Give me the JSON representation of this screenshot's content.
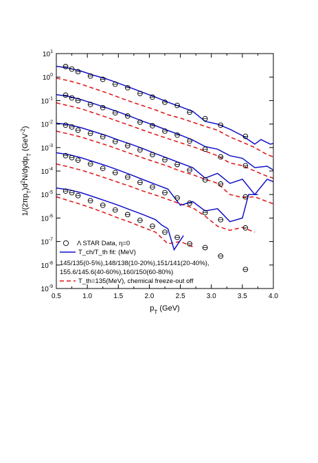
{
  "chart_data": {
    "type": "scatter",
    "title": "",
    "xlabel": "p_T (GeV)",
    "ylabel": "1/(2πp_T)d²N/dydp_T (GeV⁻²)",
    "xlim": [
      0.5,
      4.0
    ],
    "ylim_log10": [
      -9,
      1
    ],
    "y_scale": "log",
    "x_ticks": [
      "0.5",
      "1.0",
      "1.5",
      "2.0",
      "2.5",
      "3.0",
      "3.5",
      "4.0"
    ],
    "y_ticks": [
      {
        "base": "10",
        "exp": "1"
      },
      {
        "base": "10",
        "exp": "0"
      },
      {
        "base": "10",
        "exp": "-1"
      },
      {
        "base": "10",
        "exp": "-2"
      },
      {
        "base": "10",
        "exp": "-3"
      },
      {
        "base": "10",
        "exp": "-4"
      },
      {
        "base": "10",
        "exp": "-5"
      },
      {
        "base": "10",
        "exp": "-6"
      },
      {
        "base": "10",
        "exp": "-7"
      },
      {
        "base": "10",
        "exp": "-8"
      },
      {
        "base": "10",
        "exp": "-9"
      }
    ],
    "legend": {
      "placement": "bottom-left",
      "entries": [
        {
          "marker": "circle",
          "text": "Λ STAR Data, η=0"
        },
        {
          "marker": "solid-line",
          "text": "T_ch/T_th fit: (MeV)"
        },
        {
          "marker": "none",
          "text": "145/135(0-5%),148/138(10-20%),151/141(20-40%),"
        },
        {
          "marker": "none",
          "text": "155.6/145.6(40-60%),160/150(60-80%)"
        },
        {
          "marker": "dashed-line",
          "text": "T_th=135(MeV), chemical freeze-out off"
        }
      ]
    },
    "colors": {
      "data": "#000000",
      "fit": "#1010c8",
      "off": "#e01010"
    },
    "series": [
      {
        "centrality": "0-5%",
        "data_x": [
          0.65,
          0.75,
          0.85,
          1.05,
          1.25,
          1.45,
          1.65,
          1.85,
          2.05,
          2.25,
          2.45,
          2.65,
          2.9,
          3.15,
          3.55
        ],
        "data_y": [
          2.8,
          2.2,
          1.7,
          1.1,
          0.8,
          0.5,
          0.35,
          0.2,
          0.14,
          0.085,
          0.062,
          0.032,
          0.017,
          0.009,
          0.003
        ],
        "fit_x": [
          0.5,
          0.7,
          0.9,
          1.1,
          1.3,
          1.5,
          1.7,
          1.9,
          2.1,
          2.3,
          2.5,
          2.7,
          2.9,
          3.1,
          3.3,
          3.5,
          3.7,
          3.8,
          3.95,
          4.0
        ],
        "fit_y": [
          2.9,
          2.4,
          1.8,
          1.2,
          0.85,
          0.55,
          0.35,
          0.22,
          0.14,
          0.085,
          0.055,
          0.035,
          0.013,
          0.01,
          0.006,
          0.0032,
          0.0014,
          0.0022,
          0.0014,
          0.0015
        ],
        "off_x": [
          0.5,
          0.7,
          0.9,
          1.1,
          1.3,
          1.5,
          1.7,
          1.9,
          2.1,
          2.3,
          2.5,
          2.7,
          2.9,
          3.1,
          3.3,
          3.5,
          3.7,
          3.9,
          4.0
        ],
        "off_y": [
          0.9,
          0.7,
          0.5,
          0.33,
          0.22,
          0.14,
          0.09,
          0.06,
          0.04,
          0.025,
          0.018,
          0.012,
          0.008,
          0.0055,
          0.0028,
          0.0017,
          0.001,
          0.0005,
          0.0004
        ]
      },
      {
        "centrality": "10-20%",
        "data_x": [
          0.65,
          0.75,
          0.85,
          1.05,
          1.25,
          1.45,
          1.65,
          1.85,
          2.05,
          2.25,
          2.45,
          2.65,
          2.9,
          3.15,
          3.55
        ],
        "data_y": [
          0.17,
          0.13,
          0.1,
          0.068,
          0.05,
          0.03,
          0.022,
          0.012,
          0.0085,
          0.005,
          0.0034,
          0.0019,
          0.00085,
          0.0004,
          0.00017
        ],
        "fit_x": [
          0.5,
          0.7,
          0.9,
          1.1,
          1.3,
          1.5,
          1.7,
          1.9,
          2.1,
          2.3,
          2.5,
          2.7,
          2.9,
          3.1,
          3.3,
          3.5,
          3.7,
          3.9,
          4.0
        ],
        "fit_y": [
          0.18,
          0.15,
          0.11,
          0.075,
          0.05,
          0.033,
          0.021,
          0.013,
          0.0085,
          0.0053,
          0.0034,
          0.0021,
          0.0011,
          0.00085,
          0.00045,
          0.00035,
          0.00014,
          0.00016,
          0.00011
        ],
        "off_x": [
          0.5,
          0.7,
          0.9,
          1.1,
          1.3,
          1.5,
          1.7,
          1.9,
          2.1,
          2.3,
          2.5,
          2.7,
          2.9,
          3.1,
          3.3,
          3.5,
          3.7,
          3.9,
          4.0
        ],
        "off_y": [
          0.08,
          0.06,
          0.045,
          0.03,
          0.02,
          0.013,
          0.0085,
          0.0055,
          0.0036,
          0.0024,
          0.0016,
          0.0011,
          0.0007,
          0.00045,
          0.00022,
          0.00017,
          0.0001,
          6e-05,
          5e-05
        ]
      },
      {
        "centrality": "20-40%",
        "data_x": [
          0.65,
          0.75,
          0.85,
          1.05,
          1.25,
          1.45,
          1.65,
          1.85,
          2.05,
          2.25,
          2.45,
          2.65,
          2.9,
          3.15,
          3.55
        ],
        "data_y": [
          0.009,
          0.0075,
          0.0055,
          0.004,
          0.0029,
          0.0018,
          0.0012,
          0.0008,
          0.0005,
          0.0003,
          0.00019,
          0.00011,
          4.2e-05,
          2.8e-05,
          8e-06
        ],
        "fit_x": [
          0.5,
          0.7,
          0.9,
          1.1,
          1.3,
          1.5,
          1.7,
          1.9,
          2.1,
          2.3,
          2.5,
          2.7,
          2.9,
          3.1,
          3.3,
          3.5,
          3.7,
          3.9,
          4.0
        ],
        "fit_y": [
          0.011,
          0.0095,
          0.007,
          0.0048,
          0.0033,
          0.0021,
          0.0014,
          0.0009,
          0.00055,
          0.00035,
          0.00022,
          0.00014,
          5e-05,
          8e-05,
          3e-05,
          4.5e-05,
          1e-05,
          4.5e-05,
          3.5e-05
        ],
        "off_x": [
          0.5,
          0.7,
          0.9,
          1.1,
          1.3,
          1.5,
          1.7,
          1.9,
          2.1,
          2.3,
          2.5,
          2.7,
          2.9,
          3.1,
          3.3,
          3.5,
          3.7,
          3.9,
          4.0
        ],
        "off_y": [
          0.005,
          0.0038,
          0.0028,
          0.0019,
          0.0013,
          0.00085,
          0.00055,
          0.00036,
          0.00024,
          0.00016,
          0.0001,
          7e-05,
          4.5e-05,
          3e-05,
          1e-05,
          7.5e-06,
          8e-06,
          5e-06,
          4e-06
        ]
      },
      {
        "centrality": "40-60%",
        "data_x": [
          0.65,
          0.75,
          0.85,
          1.05,
          1.25,
          1.45,
          1.65,
          1.85,
          2.05,
          2.25,
          2.45,
          2.65,
          2.9,
          3.15,
          3.55
        ],
        "data_y": [
          0.00045,
          0.00037,
          0.00029,
          0.0002,
          0.00013,
          8.5e-05,
          5.5e-05,
          3.3e-05,
          2.1e-05,
          1.2e-05,
          7.2e-06,
          4.3e-06,
          1.7e-06,
          8.5e-07,
          3.8e-07
        ],
        "fit_x": [
          0.5,
          0.7,
          0.9,
          1.1,
          1.3,
          1.5,
          1.7,
          1.9,
          2.1,
          2.3,
          2.5,
          2.7,
          2.9,
          3.1,
          3.3,
          3.5,
          3.6,
          3.75
        ],
        "fit_y": [
          0.0006,
          0.0005,
          0.00037,
          0.00025,
          0.00017,
          0.00011,
          7e-05,
          4.3e-05,
          2.7e-05,
          1.7e-05,
          3.5e-06,
          5e-06,
          2e-06,
          2.5e-06,
          7e-07,
          1e-06,
          1e-05,
          1e-05
        ],
        "off_x": [
          0.5,
          0.7,
          0.9,
          1.1,
          1.3,
          1.5,
          1.7,
          1.9,
          2.1,
          2.3,
          2.5,
          2.7,
          2.9,
          3.1,
          3.3,
          3.5,
          3.7
        ],
        "off_y": [
          0.0002,
          0.00015,
          0.00011,
          7.5e-05,
          5e-05,
          3.3e-05,
          2.2e-05,
          1.4e-05,
          9.5e-06,
          6.2e-06,
          4e-06,
          2.7e-06,
          1.2e-06,
          4.5e-07,
          3e-07,
          4e-07,
          2.5e-07
        ]
      },
      {
        "centrality": "60-80%",
        "data_x": [
          0.65,
          0.75,
          0.85,
          1.05,
          1.25,
          1.45,
          1.65,
          1.85,
          2.05,
          2.25,
          2.45,
          2.65,
          2.9,
          3.15,
          3.55
        ],
        "data_y": [
          1.4e-05,
          1.2e-05,
          9e-06,
          5.5e-06,
          3.5e-06,
          2.2e-06,
          1.4e-06,
          8e-07,
          4.5e-07,
          2.5e-07,
          1.5e-07,
          8e-08,
          5.5e-08,
          2.4e-08,
          6.5e-09
        ],
        "fit_x": [
          0.5,
          0.7,
          0.9,
          1.1,
          1.3,
          1.5,
          1.7,
          1.9,
          2.1,
          2.2,
          2.3,
          2.4,
          2.55
        ],
        "fit_y": [
          1.9e-05,
          1.6e-05,
          1.2e-05,
          8e-06,
          5.3e-06,
          3.5e-06,
          2.2e-06,
          1.4e-06,
          8.5e-07,
          5e-07,
          3.5e-07,
          4.5e-08,
          1.8e-07
        ],
        "off_x": [
          0.5,
          0.7,
          0.9,
          1.1,
          1.3,
          1.5,
          1.7,
          1.9,
          2.1,
          2.3,
          2.5,
          2.7
        ],
        "off_y": [
          8e-06,
          5.5e-06,
          3.8e-06,
          2.5e-06,
          1.6e-06,
          1e-06,
          6.5e-07,
          4e-07,
          2.5e-07,
          8e-08,
          1e-07,
          6e-08
        ]
      }
    ]
  }
}
